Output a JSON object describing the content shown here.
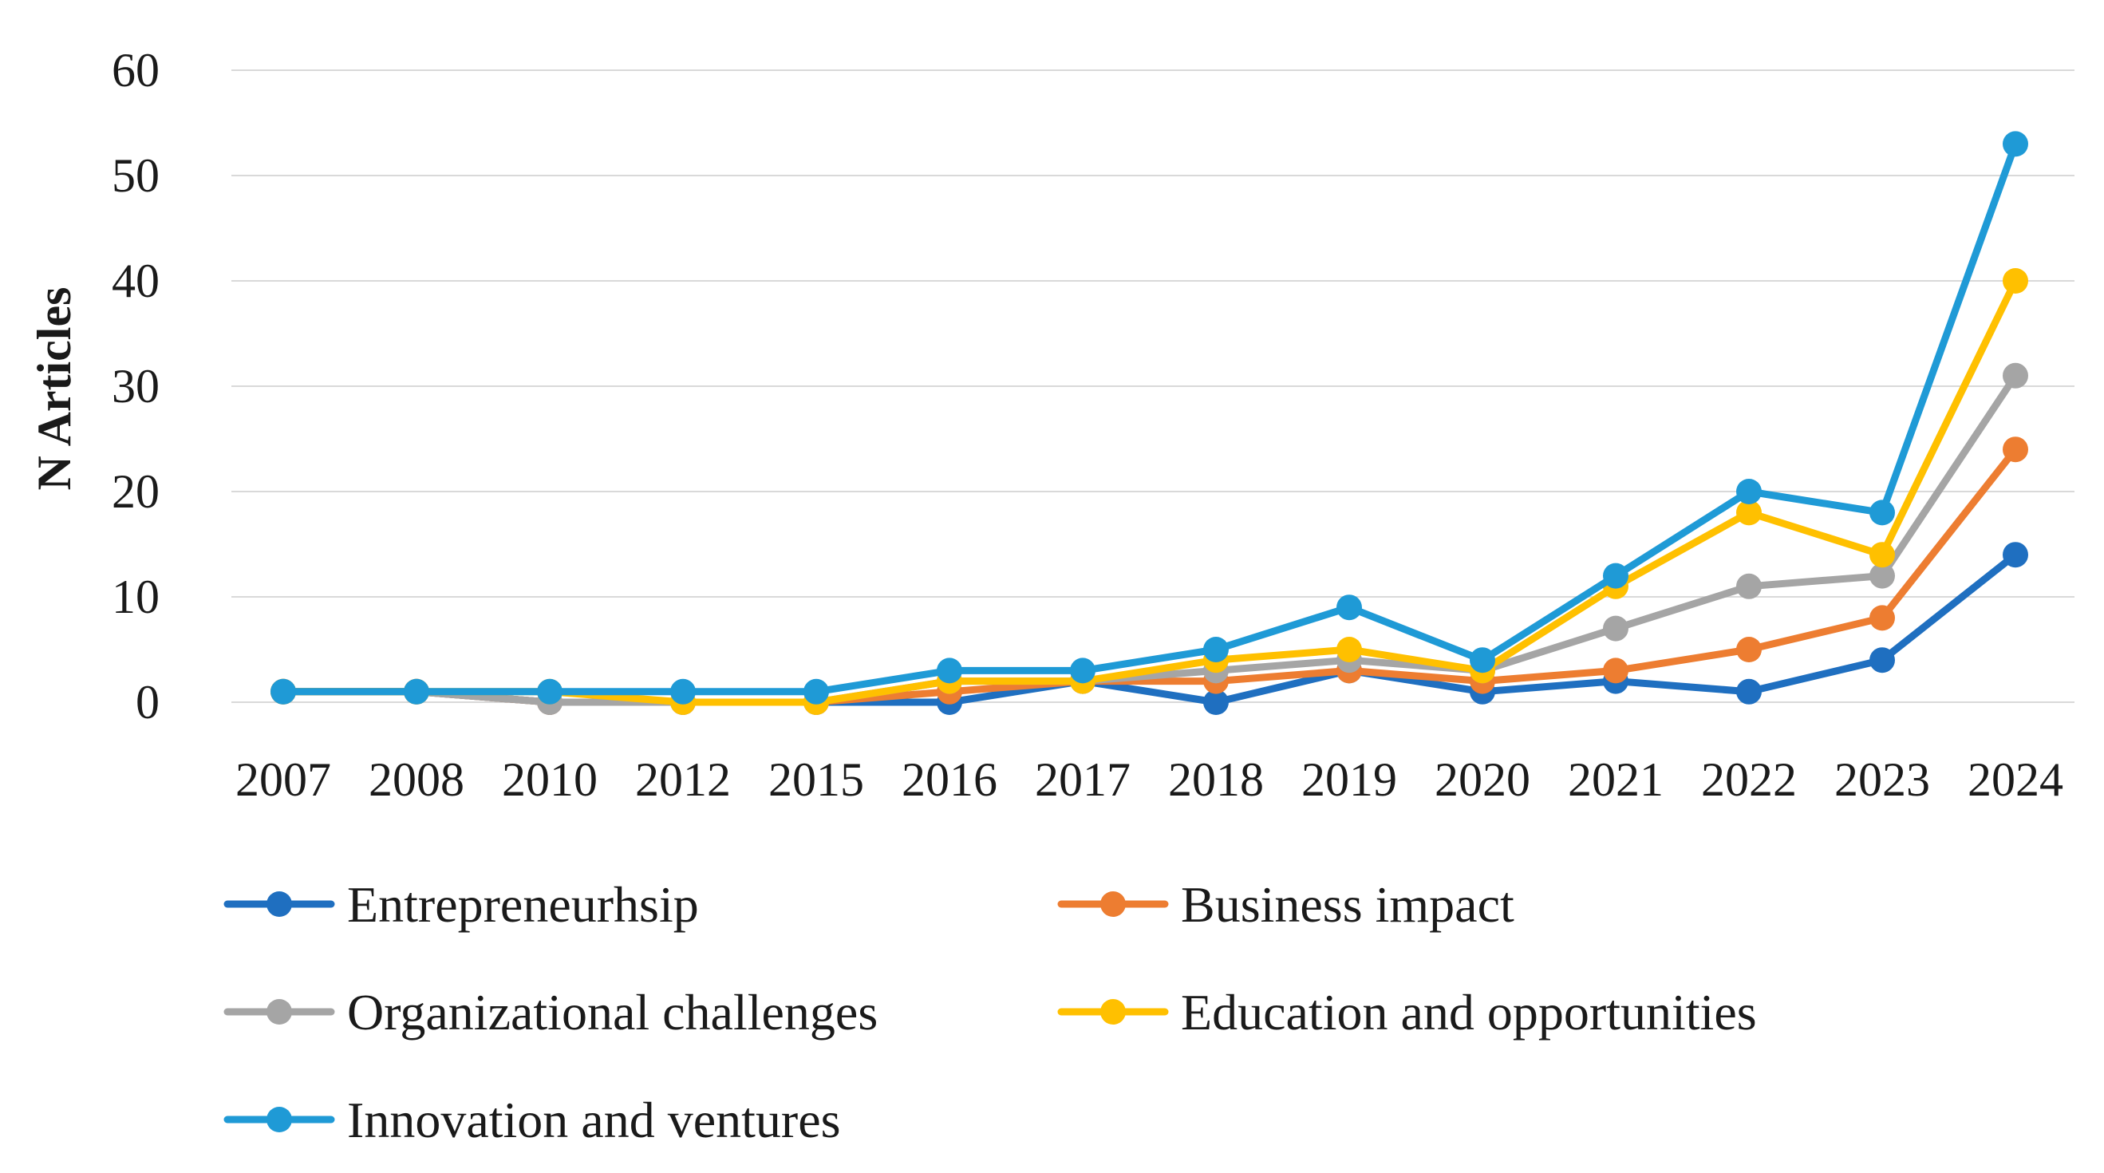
{
  "chart_data": {
    "type": "line",
    "title": "",
    "xlabel": "",
    "ylabel": "N Articles",
    "ylim": [
      0,
      60
    ],
    "yticks": [
      0,
      10,
      20,
      30,
      40,
      50,
      60
    ],
    "grid": true,
    "legend_position": "bottom",
    "categories": [
      "2007",
      "2008",
      "2010",
      "2012",
      "2015",
      "2016",
      "2017",
      "2018",
      "2019",
      "2020",
      "2021",
      "2022",
      "2023",
      "2024"
    ],
    "series": [
      {
        "name": "Entrepreneurhsip",
        "color": "#1f6fc0",
        "values": [
          1,
          1,
          0,
          0,
          0,
          0,
          2,
          0,
          3,
          1,
          2,
          1,
          4,
          14
        ]
      },
      {
        "name": "Business impact",
        "color": "#ed7d31",
        "values": [
          1,
          1,
          0,
          0,
          0,
          1,
          2,
          2,
          3,
          2,
          3,
          5,
          8,
          24
        ]
      },
      {
        "name": "Organizational challenges",
        "color": "#a5a5a5",
        "values": [
          1,
          1,
          0,
          0,
          0,
          2,
          2,
          3,
          4,
          3,
          7,
          11,
          12,
          31
        ]
      },
      {
        "name": "Education and opportunities",
        "color": "#ffc000",
        "values": [
          1,
          1,
          1,
          0,
          0,
          2,
          2,
          4,
          5,
          3,
          11,
          18,
          14,
          40
        ]
      },
      {
        "name": "Innovation and ventures",
        "color": "#1f9ad6",
        "values": [
          1,
          1,
          1,
          1,
          1,
          3,
          3,
          5,
          9,
          4,
          12,
          20,
          18,
          53
        ]
      }
    ]
  }
}
